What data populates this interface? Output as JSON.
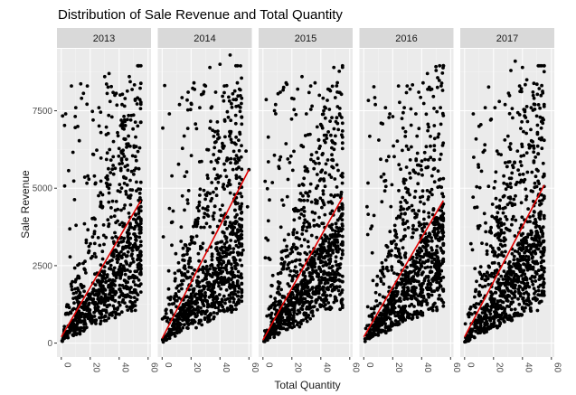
{
  "chart_data": {
    "type": "scatter",
    "title": "Distribution of Sale Revenue and Total Quantity",
    "xlabel": "Total Quantity",
    "ylabel": "Sale Revenue",
    "xlim": [
      -3,
      62
    ],
    "ylim": [
      -450,
      9500
    ],
    "x_ticks": [
      0,
      20,
      40,
      60
    ],
    "y_ticks": [
      0,
      2500,
      5000,
      7500
    ],
    "grid": true,
    "layout": "facet_wrap by year, 5 panels in one row",
    "colors": {
      "points": "#000000",
      "trend_line": "#e00000",
      "panel_background": "#ebebeb",
      "strip_background": "#d9d9d9",
      "grid_major": "#ffffff"
    },
    "panels": [
      {
        "label": "2013",
        "seed": 11,
        "n_points": 900,
        "trend": {
          "x": [
            0,
            55
          ],
          "y": [
            200,
            4600
          ]
        },
        "highlights": [
          [
            3,
            7400
          ],
          [
            7,
            8300
          ],
          [
            10,
            7600
          ],
          [
            14,
            7900
          ],
          [
            18,
            8300
          ],
          [
            22,
            7200
          ],
          [
            26,
            7600
          ],
          [
            30,
            8600
          ],
          [
            33,
            8700
          ],
          [
            35,
            7300
          ],
          [
            37,
            8000
          ],
          [
            42,
            7700
          ],
          [
            47,
            8600
          ],
          [
            48,
            7200
          ],
          [
            52,
            3100
          ],
          [
            45,
            2800
          ],
          [
            50,
            4000
          ]
        ]
      },
      {
        "label": "2014",
        "seed": 23,
        "n_points": 950,
        "trend": {
          "x": [
            0,
            60
          ],
          "y": [
            150,
            5600
          ]
        },
        "highlights": [
          [
            5,
            7400
          ],
          [
            12,
            7700
          ],
          [
            18,
            8100
          ],
          [
            22,
            8400
          ],
          [
            26,
            7600
          ],
          [
            30,
            8300
          ],
          [
            33,
            8900
          ],
          [
            37,
            8100
          ],
          [
            40,
            9000
          ],
          [
            43,
            8300
          ],
          [
            47,
            9300
          ],
          [
            52,
            8400
          ],
          [
            55,
            7300
          ],
          [
            58,
            6200
          ],
          [
            60,
            5600
          ],
          [
            59,
            4400
          ],
          [
            56,
            3000
          ]
        ]
      },
      {
        "label": "2015",
        "seed": 37,
        "n_points": 1000,
        "trend": {
          "x": [
            0,
            55
          ],
          "y": [
            100,
            4700
          ]
        },
        "highlights": [
          [
            8,
            7500
          ],
          [
            12,
            8100
          ],
          [
            16,
            8400
          ],
          [
            20,
            7900
          ],
          [
            24,
            8200
          ],
          [
            27,
            8600
          ],
          [
            30,
            7400
          ],
          [
            33,
            8300
          ],
          [
            36,
            8400
          ],
          [
            39,
            8000
          ],
          [
            42,
            7500
          ],
          [
            45,
            8200
          ],
          [
            49,
            8900
          ],
          [
            53,
            7400
          ],
          [
            55,
            7100
          ],
          [
            54,
            4800
          ],
          [
            52,
            3500
          ]
        ]
      },
      {
        "label": "2016",
        "seed": 53,
        "n_points": 950,
        "trend": {
          "x": [
            0,
            55
          ],
          "y": [
            200,
            4600
          ]
        },
        "highlights": [
          [
            8,
            7700
          ],
          [
            12,
            7100
          ],
          [
            15,
            7600
          ],
          [
            18,
            7400
          ],
          [
            24,
            8300
          ],
          [
            28,
            7600
          ],
          [
            30,
            8300
          ],
          [
            32,
            8200
          ],
          [
            36,
            7400
          ],
          [
            38,
            8100
          ],
          [
            41,
            8400
          ],
          [
            44,
            8700
          ],
          [
            47,
            8200
          ],
          [
            50,
            8800
          ],
          [
            53,
            7600
          ],
          [
            52,
            4300
          ],
          [
            48,
            3600
          ]
        ]
      },
      {
        "label": "2017",
        "seed": 71,
        "n_points": 1000,
        "trend": {
          "x": [
            0,
            55
          ],
          "y": [
            200,
            5100
          ]
        },
        "highlights": [
          [
            6,
            7400
          ],
          [
            10,
            7000
          ],
          [
            14,
            6400
          ],
          [
            18,
            7200
          ],
          [
            21,
            7600
          ],
          [
            24,
            7800
          ],
          [
            28,
            7700
          ],
          [
            32,
            8800
          ],
          [
            35,
            9100
          ],
          [
            38,
            8300
          ],
          [
            40,
            8900
          ],
          [
            43,
            8500
          ],
          [
            46,
            7600
          ],
          [
            48,
            7900
          ],
          [
            54,
            7100
          ],
          [
            55,
            5400
          ],
          [
            53,
            4500
          ]
        ]
      }
    ]
  }
}
